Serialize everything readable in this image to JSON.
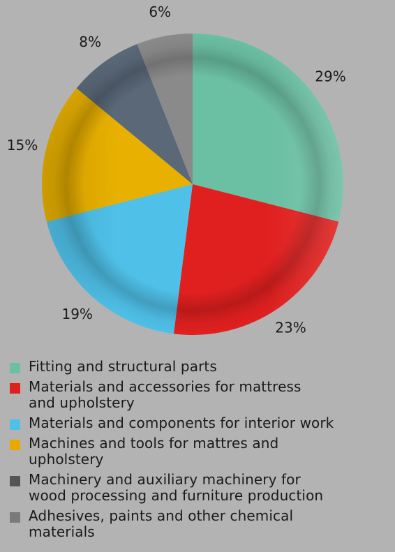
{
  "chart_data": {
    "type": "pie",
    "title": "",
    "slices": [
      {
        "label": "Fitting and structural parts",
        "value": 29,
        "display": "29%",
        "color": "#6bbfa2"
      },
      {
        "label": "Materials and accessories for mattress\nand upholstery",
        "value": 23,
        "display": "23%",
        "color": "#e0201f"
      },
      {
        "label": "Materials and components for interior work",
        "value": 19,
        "display": "19%",
        "color": "#4fc0e8"
      },
      {
        "label": "Machines and tools for mattres and\nupholstery",
        "value": 15,
        "display": "15%",
        "color": "#e8b000"
      },
      {
        "label": "Machinery and auxiliary machinery for\nwood processing and furniture production",
        "value": 8,
        "display": "8%",
        "color": "#5a6878"
      },
      {
        "label": "Adhesives, paints and other chemical\nmaterials",
        "value": 6,
        "display": "6%",
        "color": "#8a8a8a"
      }
    ],
    "legend_position": "bottom"
  },
  "legend_swatch_colors": [
    "#6bbfa2",
    "#e0201f",
    "#4fc0e8",
    "#e8a800",
    "#555555",
    "#7a7a7a"
  ]
}
